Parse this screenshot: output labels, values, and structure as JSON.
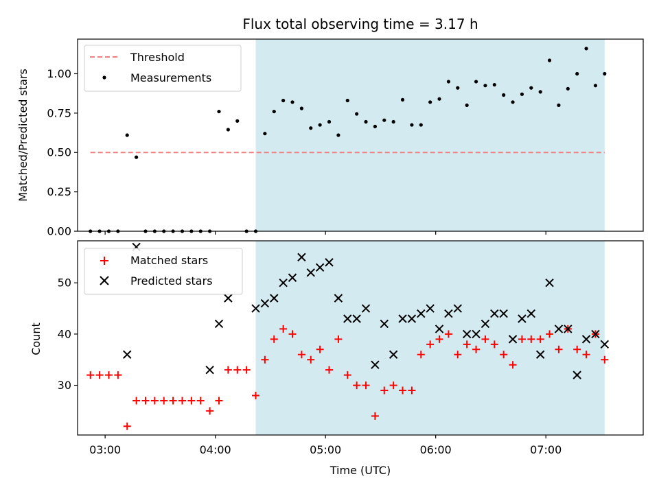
{
  "chart_data": {
    "title": "Flux total observing time = 3.17 h",
    "xlabel": "Time (UTC)",
    "xlim": [
      "02:45",
      "07:53"
    ],
    "xticks": [
      "03:00",
      "04:00",
      "05:00",
      "06:00",
      "07:00"
    ],
    "shaded_span": {
      "start": "04:22",
      "end": "07:32",
      "color": "#d4eaf1"
    },
    "panels": [
      {
        "type": "scatter",
        "ylabel": "Matched/Predicted stars",
        "ylim": [
          0,
          1.22
        ],
        "yticks": [
          "0.00",
          "0.25",
          "0.50",
          "0.75",
          "1.00"
        ],
        "legend_position": "upper-left",
        "series": [
          {
            "name": "Threshold",
            "kind": "dashed-line",
            "color": "#f08080",
            "x": [
              "02:52",
              "07:32"
            ],
            "y": [
              0.5,
              0.5
            ]
          },
          {
            "name": "Measurements",
            "kind": "dot",
            "color": "#000000",
            "x": [
              "02:52",
              "02:57",
              "03:02",
              "03:07",
              "03:12",
              "03:17",
              "03:22",
              "03:27",
              "03:32",
              "03:37",
              "03:42",
              "03:47",
              "03:52",
              "03:57",
              "04:02",
              "04:07",
              "04:12",
              "04:17",
              "04:22",
              "04:27",
              "04:32",
              "04:37",
              "04:42",
              "04:47",
              "04:52",
              "04:57",
              "05:02",
              "05:07",
              "05:12",
              "05:17",
              "05:22",
              "05:27",
              "05:32",
              "05:37",
              "05:42",
              "05:47",
              "05:52",
              "05:57",
              "06:02",
              "06:07",
              "06:12",
              "06:17",
              "06:22",
              "06:27",
              "06:32",
              "06:37",
              "06:42",
              "06:47",
              "06:52",
              "06:57",
              "07:02",
              "07:07",
              "07:12",
              "07:17",
              "07:22",
              "07:27",
              "07:32"
            ],
            "y": [
              0,
              0,
              0,
              0,
              0.61,
              0.47,
              0,
              0,
              0,
              0,
              0,
              0,
              0,
              0,
              0.76,
              0.645,
              0.7,
              0,
              0,
              0.62,
              0.76,
              0.83,
              0.82,
              0.78,
              0.655,
              0.675,
              0.695,
              0.61,
              0.83,
              0.745,
              0.695,
              0.665,
              0.705,
              0.695,
              0.835,
              0.675,
              0.675,
              0.82,
              0.84,
              0.95,
              0.91,
              0.8,
              0.95,
              0.925,
              0.93,
              0.865,
              0.82,
              0.87,
              0.91,
              0.885,
              1.085,
              0.8,
              0.905,
              1.0,
              1.16,
              0.925,
              1.0
            ]
          }
        ]
      },
      {
        "type": "scatter",
        "ylabel": "Count",
        "ylim": [
          20.3,
          58.2
        ],
        "yticks": [
          "30",
          "40",
          "50"
        ],
        "legend_position": "upper-left",
        "series": [
          {
            "name": "Matched stars",
            "kind": "plus",
            "color": "#ff0000",
            "x": [
              "02:52",
              "02:57",
              "03:02",
              "03:07",
              "03:12",
              "03:17",
              "03:22",
              "03:27",
              "03:32",
              "03:37",
              "03:42",
              "03:47",
              "03:52",
              "03:57",
              "04:02",
              "04:07",
              "04:12",
              "04:17",
              "04:22",
              "04:27",
              "04:32",
              "04:37",
              "04:42",
              "04:47",
              "04:52",
              "04:57",
              "05:02",
              "05:07",
              "05:12",
              "05:17",
              "05:22",
              "05:27",
              "05:32",
              "05:37",
              "05:42",
              "05:47",
              "05:52",
              "05:57",
              "06:02",
              "06:07",
              "06:12",
              "06:17",
              "06:22",
              "06:27",
              "06:32",
              "06:37",
              "06:42",
              "06:47",
              "06:52",
              "06:57",
              "07:02",
              "07:07",
              "07:12",
              "07:17",
              "07:22",
              "07:27",
              "07:32"
            ],
            "y": [
              32,
              32,
              32,
              32,
              22,
              27,
              27,
              27,
              27,
              27,
              27,
              27,
              27,
              25,
              27,
              33,
              33,
              33,
              28,
              35,
              39,
              41,
              40,
              36,
              35,
              37,
              33,
              39,
              32,
              30,
              30,
              24,
              29,
              30,
              29,
              29,
              36,
              38,
              39,
              40,
              36,
              38,
              37,
              39,
              38,
              36,
              34,
              39,
              39,
              39,
              40,
              37,
              41,
              37,
              36,
              40,
              35
            ]
          },
          {
            "name": "Predicted stars",
            "kind": "cross",
            "color": "#000000",
            "x": [
              "03:12",
              "03:17",
              "03:57",
              "04:02",
              "04:07",
              "04:22",
              "04:27",
              "04:32",
              "04:37",
              "04:42",
              "04:47",
              "04:52",
              "04:57",
              "05:02",
              "05:07",
              "05:12",
              "05:17",
              "05:22",
              "05:27",
              "05:32",
              "05:37",
              "05:42",
              "05:47",
              "05:52",
              "05:57",
              "06:02",
              "06:07",
              "06:12",
              "06:17",
              "06:22",
              "06:27",
              "06:32",
              "06:37",
              "06:42",
              "06:47",
              "06:52",
              "06:57",
              "07:02",
              "07:07",
              "07:12",
              "07:17",
              "07:22",
              "07:27",
              "07:32"
            ],
            "y": [
              36,
              57,
              33,
              42,
              47,
              45,
              46,
              47,
              50,
              51,
              55,
              52,
              53,
              54,
              47,
              43,
              43,
              45,
              34,
              42,
              36,
              43,
              43,
              44,
              45,
              41,
              44,
              45,
              40,
              40,
              42,
              44,
              44,
              39,
              43,
              44,
              36,
              50,
              41,
              41,
              32,
              39,
              40,
              38
            ]
          }
        ]
      }
    ]
  }
}
